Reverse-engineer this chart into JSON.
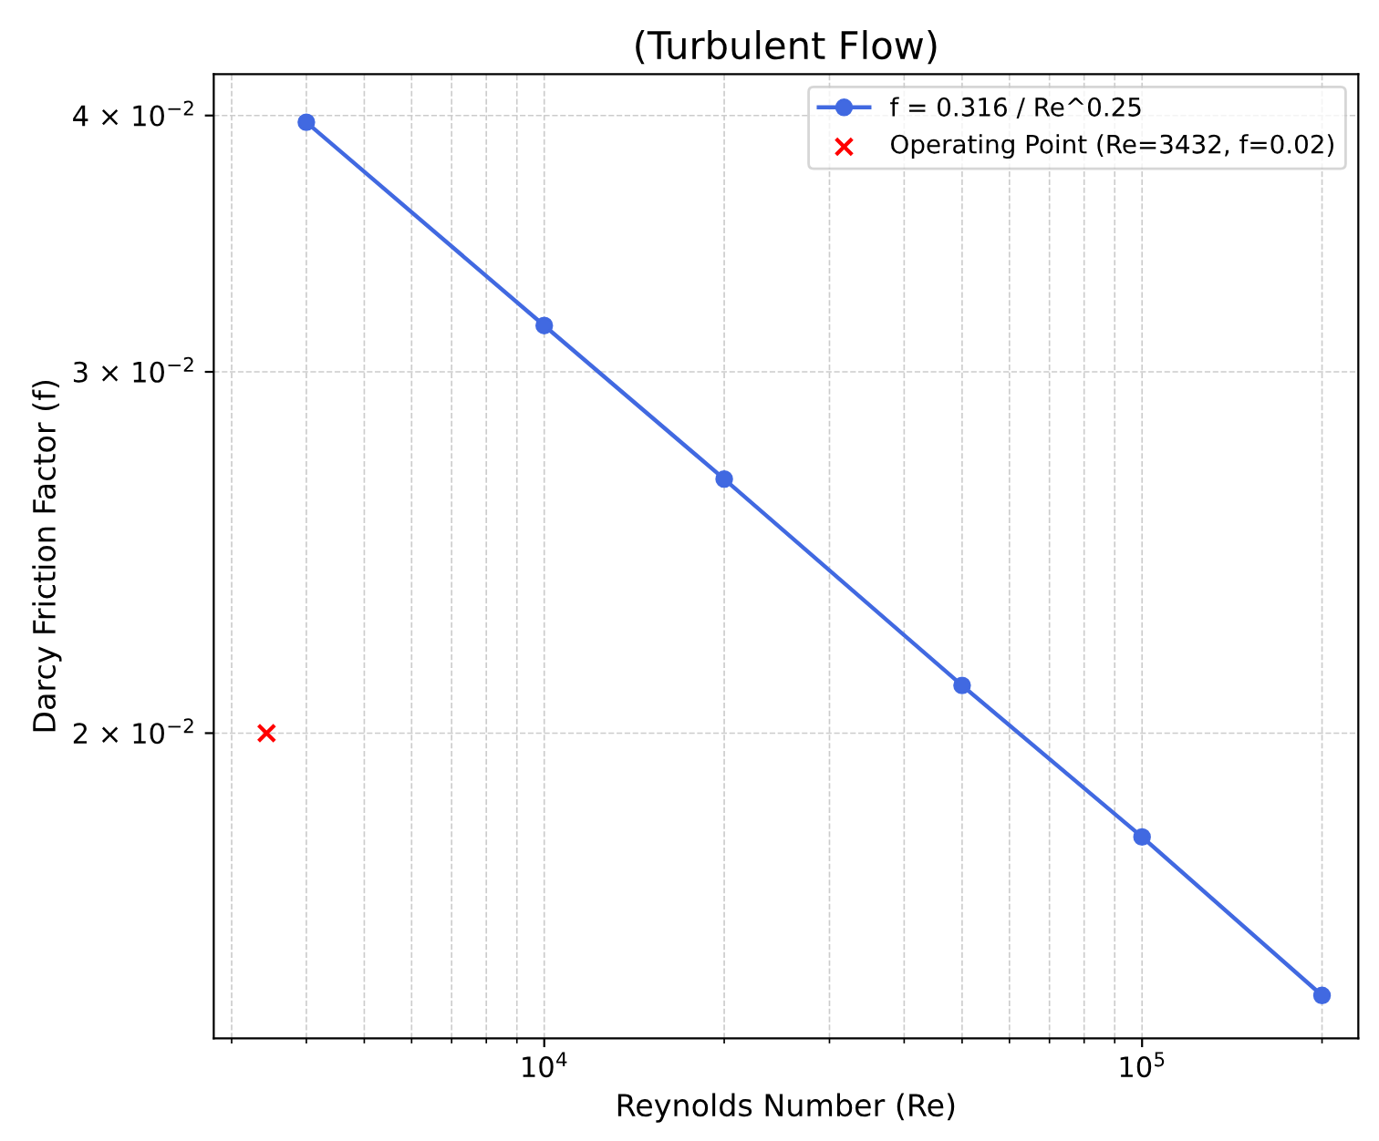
{
  "chart_data": {
    "type": "line",
    "title": "(Turbulent Flow)",
    "xlabel": "Reynolds Number (Re)",
    "ylabel": "Darcy Friction Factor (f)",
    "log": "xy",
    "grid": true,
    "legend": "top right",
    "xlim": [
      2800,
      230000
    ],
    "ylim": [
      0.0142,
      0.0419
    ],
    "xticks": [
      {
        "value": 10000,
        "label": "10$^{4}$"
      },
      {
        "value": 100000,
        "label": "10$^{5}$"
      }
    ],
    "yticks": [
      {
        "value": 0.02,
        "label": "2 × 10$^{−2}$"
      },
      {
        "value": 0.03,
        "label": "3 × 10$^{−2}$"
      },
      {
        "value": 0.04,
        "label": "4 × 10$^{−2}$"
      }
    ],
    "series": [
      {
        "name": "f = 0.316 / Re^0.25",
        "color": "#4169e1",
        "marker": "circle",
        "line_style": "solid",
        "x": [
          4000,
          10000,
          20000,
          50000,
          100000,
          200000
        ],
        "values": [
          0.0397,
          0.0316,
          0.0266,
          0.0211,
          0.0178,
          0.0149
        ]
      },
      {
        "name": "Operating Point (Re=3432, f=0.02)",
        "type": "scatter",
        "color": "#ff0000",
        "marker": "cross",
        "x": [
          3432
        ],
        "values": [
          0.02
        ]
      }
    ]
  }
}
